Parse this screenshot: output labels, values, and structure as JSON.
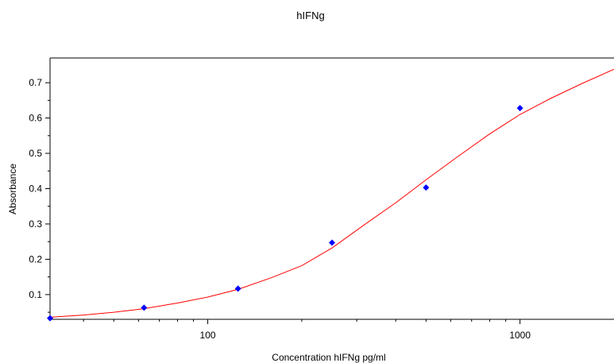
{
  "chart_data": {
    "type": "scatter",
    "title": "hIFNg",
    "xlabel": "Concentration hIFNg pg/ml",
    "ylabel": "Absorbance",
    "x_scale": "log",
    "xlim": [
      31.25,
      2000
    ],
    "ylim": [
      0.03,
      0.77
    ],
    "x_ticks": [
      100,
      1000
    ],
    "x_tick_labels": [
      "100",
      "1000"
    ],
    "y_ticks": [
      0.1,
      0.2,
      0.3,
      0.4,
      0.5,
      0.6,
      0.7
    ],
    "y_tick_labels": [
      "0.1",
      "0.2",
      "0.3",
      "0.4",
      "0.5",
      "0.6",
      "0.7"
    ],
    "grid": false,
    "legend": "none",
    "colors": {
      "points": "#0000ff",
      "curve": "#ff0000"
    },
    "series": [
      {
        "type": "scatter",
        "x": [
          31.25,
          62.5,
          125,
          250,
          500,
          1000
        ],
        "y": [
          0.033,
          0.063,
          0.117,
          0.247,
          0.403,
          0.628
        ]
      },
      {
        "type": "line",
        "x": [
          31.25,
          40,
          50,
          62.5,
          80,
          100,
          125,
          160,
          200,
          250,
          320,
          400,
          500,
          630,
          800,
          1000,
          1250,
          1600,
          2000
        ],
        "y": [
          0.036,
          0.042,
          0.05,
          0.06,
          0.076,
          0.093,
          0.115,
          0.148,
          0.182,
          0.232,
          0.3,
          0.36,
          0.425,
          0.49,
          0.555,
          0.61,
          0.655,
          0.7,
          0.738
        ]
      }
    ]
  }
}
